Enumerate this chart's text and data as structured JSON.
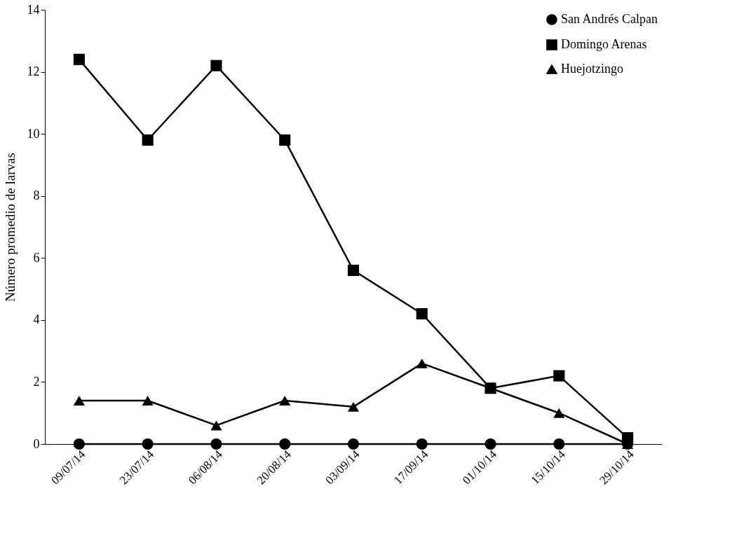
{
  "chart_data": {
    "type": "line",
    "ylabel": "Número promedio de larvas",
    "categories": [
      "09/07/14",
      "23/07/14",
      "06/08/14",
      "20/08/14",
      "03/09/14",
      "17/09/14",
      "01/10/14",
      "15/10/14",
      "29/10/14"
    ],
    "series": [
      {
        "name": "San Andrés Calpan",
        "color": "#000000",
        "marker": "circle",
        "values": [
          0,
          0,
          0,
          0,
          0,
          0,
          0,
          0,
          0
        ]
      },
      {
        "name": "Domingo Arenas",
        "color": "#000000",
        "marker": "square",
        "values": [
          12.4,
          9.8,
          12.2,
          9.8,
          5.6,
          4.2,
          1.8,
          2.2,
          0.2
        ]
      },
      {
        "name": "Huejotzingo",
        "color": "#000000",
        "marker": "triangle",
        "values": [
          1.4,
          1.4,
          0.6,
          1.4,
          1.2,
          2.6,
          1.8,
          1.0,
          0
        ]
      }
    ],
    "ylim": [
      0,
      14
    ],
    "yticks": [
      0,
      2,
      4,
      6,
      8,
      10,
      12,
      14
    ],
    "grid": false,
    "legend": "top right",
    "line_style": "solid"
  }
}
